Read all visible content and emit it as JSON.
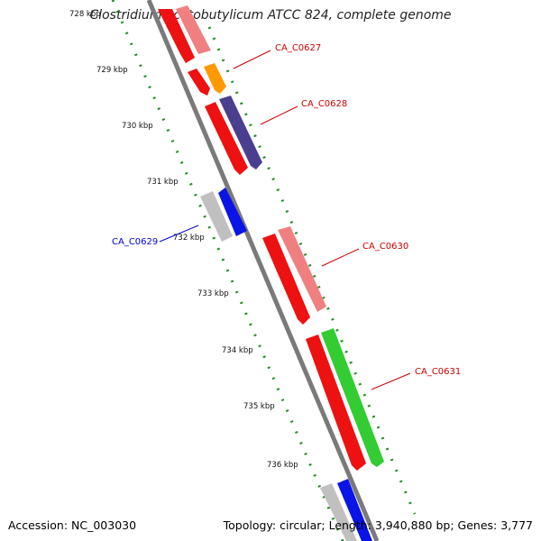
{
  "title": "Clostridium acetobutylicum ATCC 824, complete genome",
  "footer": {
    "accession": "Accession: NC_003030",
    "topology": "Topology: circular; Length: 3,940,880 bp; Genes: 3,777"
  },
  "ticks": [
    "728 kbp",
    "729 kbp",
    "730 kbp",
    "731 kbp",
    "732 kbp",
    "733 kbp",
    "734 kbp",
    "735 kbp",
    "736 kbp"
  ],
  "gene_labels": {
    "CA_C0627": "CA_C0627",
    "CA_C0628": "CA_C0628",
    "CA_C0629": "CA_C0629",
    "CA_C0630": "CA_C0630",
    "CA_C0631": "CA_C0631"
  },
  "colors": {
    "backbone": "#7a7a7a",
    "tick": "#228B22",
    "forward_label": "#cc0000",
    "reverse_label": "#0000cc",
    "red": "#ee1111",
    "pink": "#f08080",
    "orange": "#ff9900",
    "purple": "#4a3f8f",
    "gray": "#c0c0c0",
    "blue": "#0a14e6",
    "green": "#33cc33"
  }
}
